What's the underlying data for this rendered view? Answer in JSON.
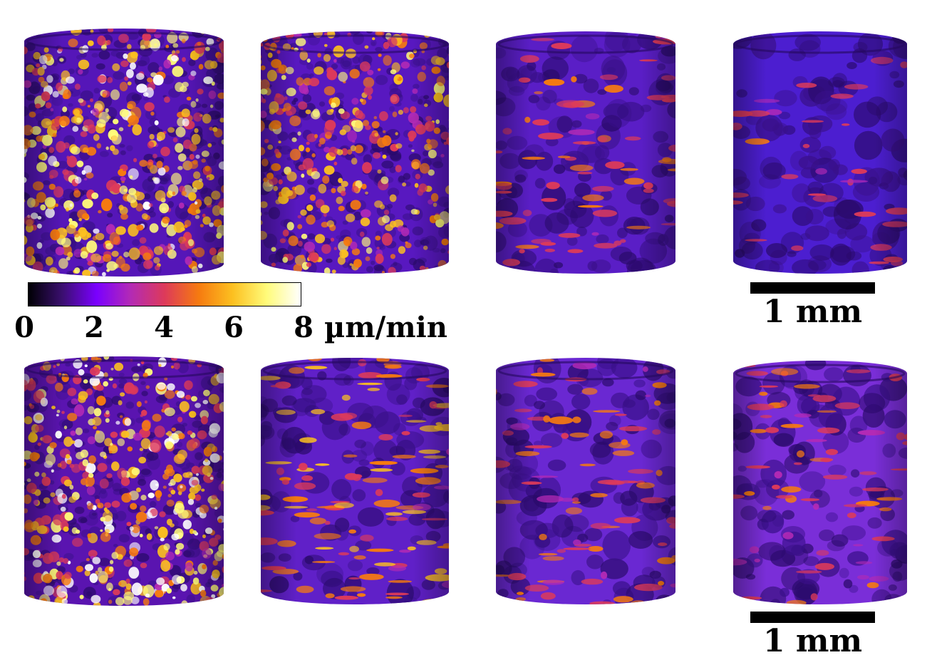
{
  "colorbar": {
    "ticks": [
      "0",
      "2",
      "4",
      "6",
      "8"
    ],
    "unit": "µm/min",
    "min": 0,
    "max": 8,
    "colormap": [
      "#000004",
      "#3b0f70",
      "#7a00ff",
      "#b32ab5",
      "#dd3a5a",
      "#f67a10",
      "#fcc020",
      "#fffb7a",
      "#ffffff"
    ]
  },
  "scale_bars": [
    {
      "label": "1 mm"
    },
    {
      "label": "1 mm"
    }
  ],
  "panels": [
    {
      "row": 1,
      "col": 1,
      "base": "#5516b8",
      "texture": "granular",
      "intensity": 0.95
    },
    {
      "row": 1,
      "col": 2,
      "base": "#5818c0",
      "texture": "granular",
      "intensity": 0.7
    },
    {
      "row": 1,
      "col": 3,
      "base": "#5a1ec6",
      "texture": "smooth",
      "intensity": 0.35
    },
    {
      "row": 1,
      "col": 4,
      "base": "#4c1ed0",
      "texture": "smooth",
      "intensity": 0.08
    },
    {
      "row": 2,
      "col": 1,
      "base": "#5a14b0",
      "texture": "granular",
      "intensity": 1.0
    },
    {
      "row": 2,
      "col": 2,
      "base": "#6020c8",
      "texture": "smooth",
      "intensity": 0.6
    },
    {
      "row": 2,
      "col": 3,
      "base": "#6a28d2",
      "texture": "smooth",
      "intensity": 0.4
    },
    {
      "row": 2,
      "col": 4,
      "base": "#7a2ed8",
      "texture": "smooth",
      "intensity": 0.3
    }
  ]
}
